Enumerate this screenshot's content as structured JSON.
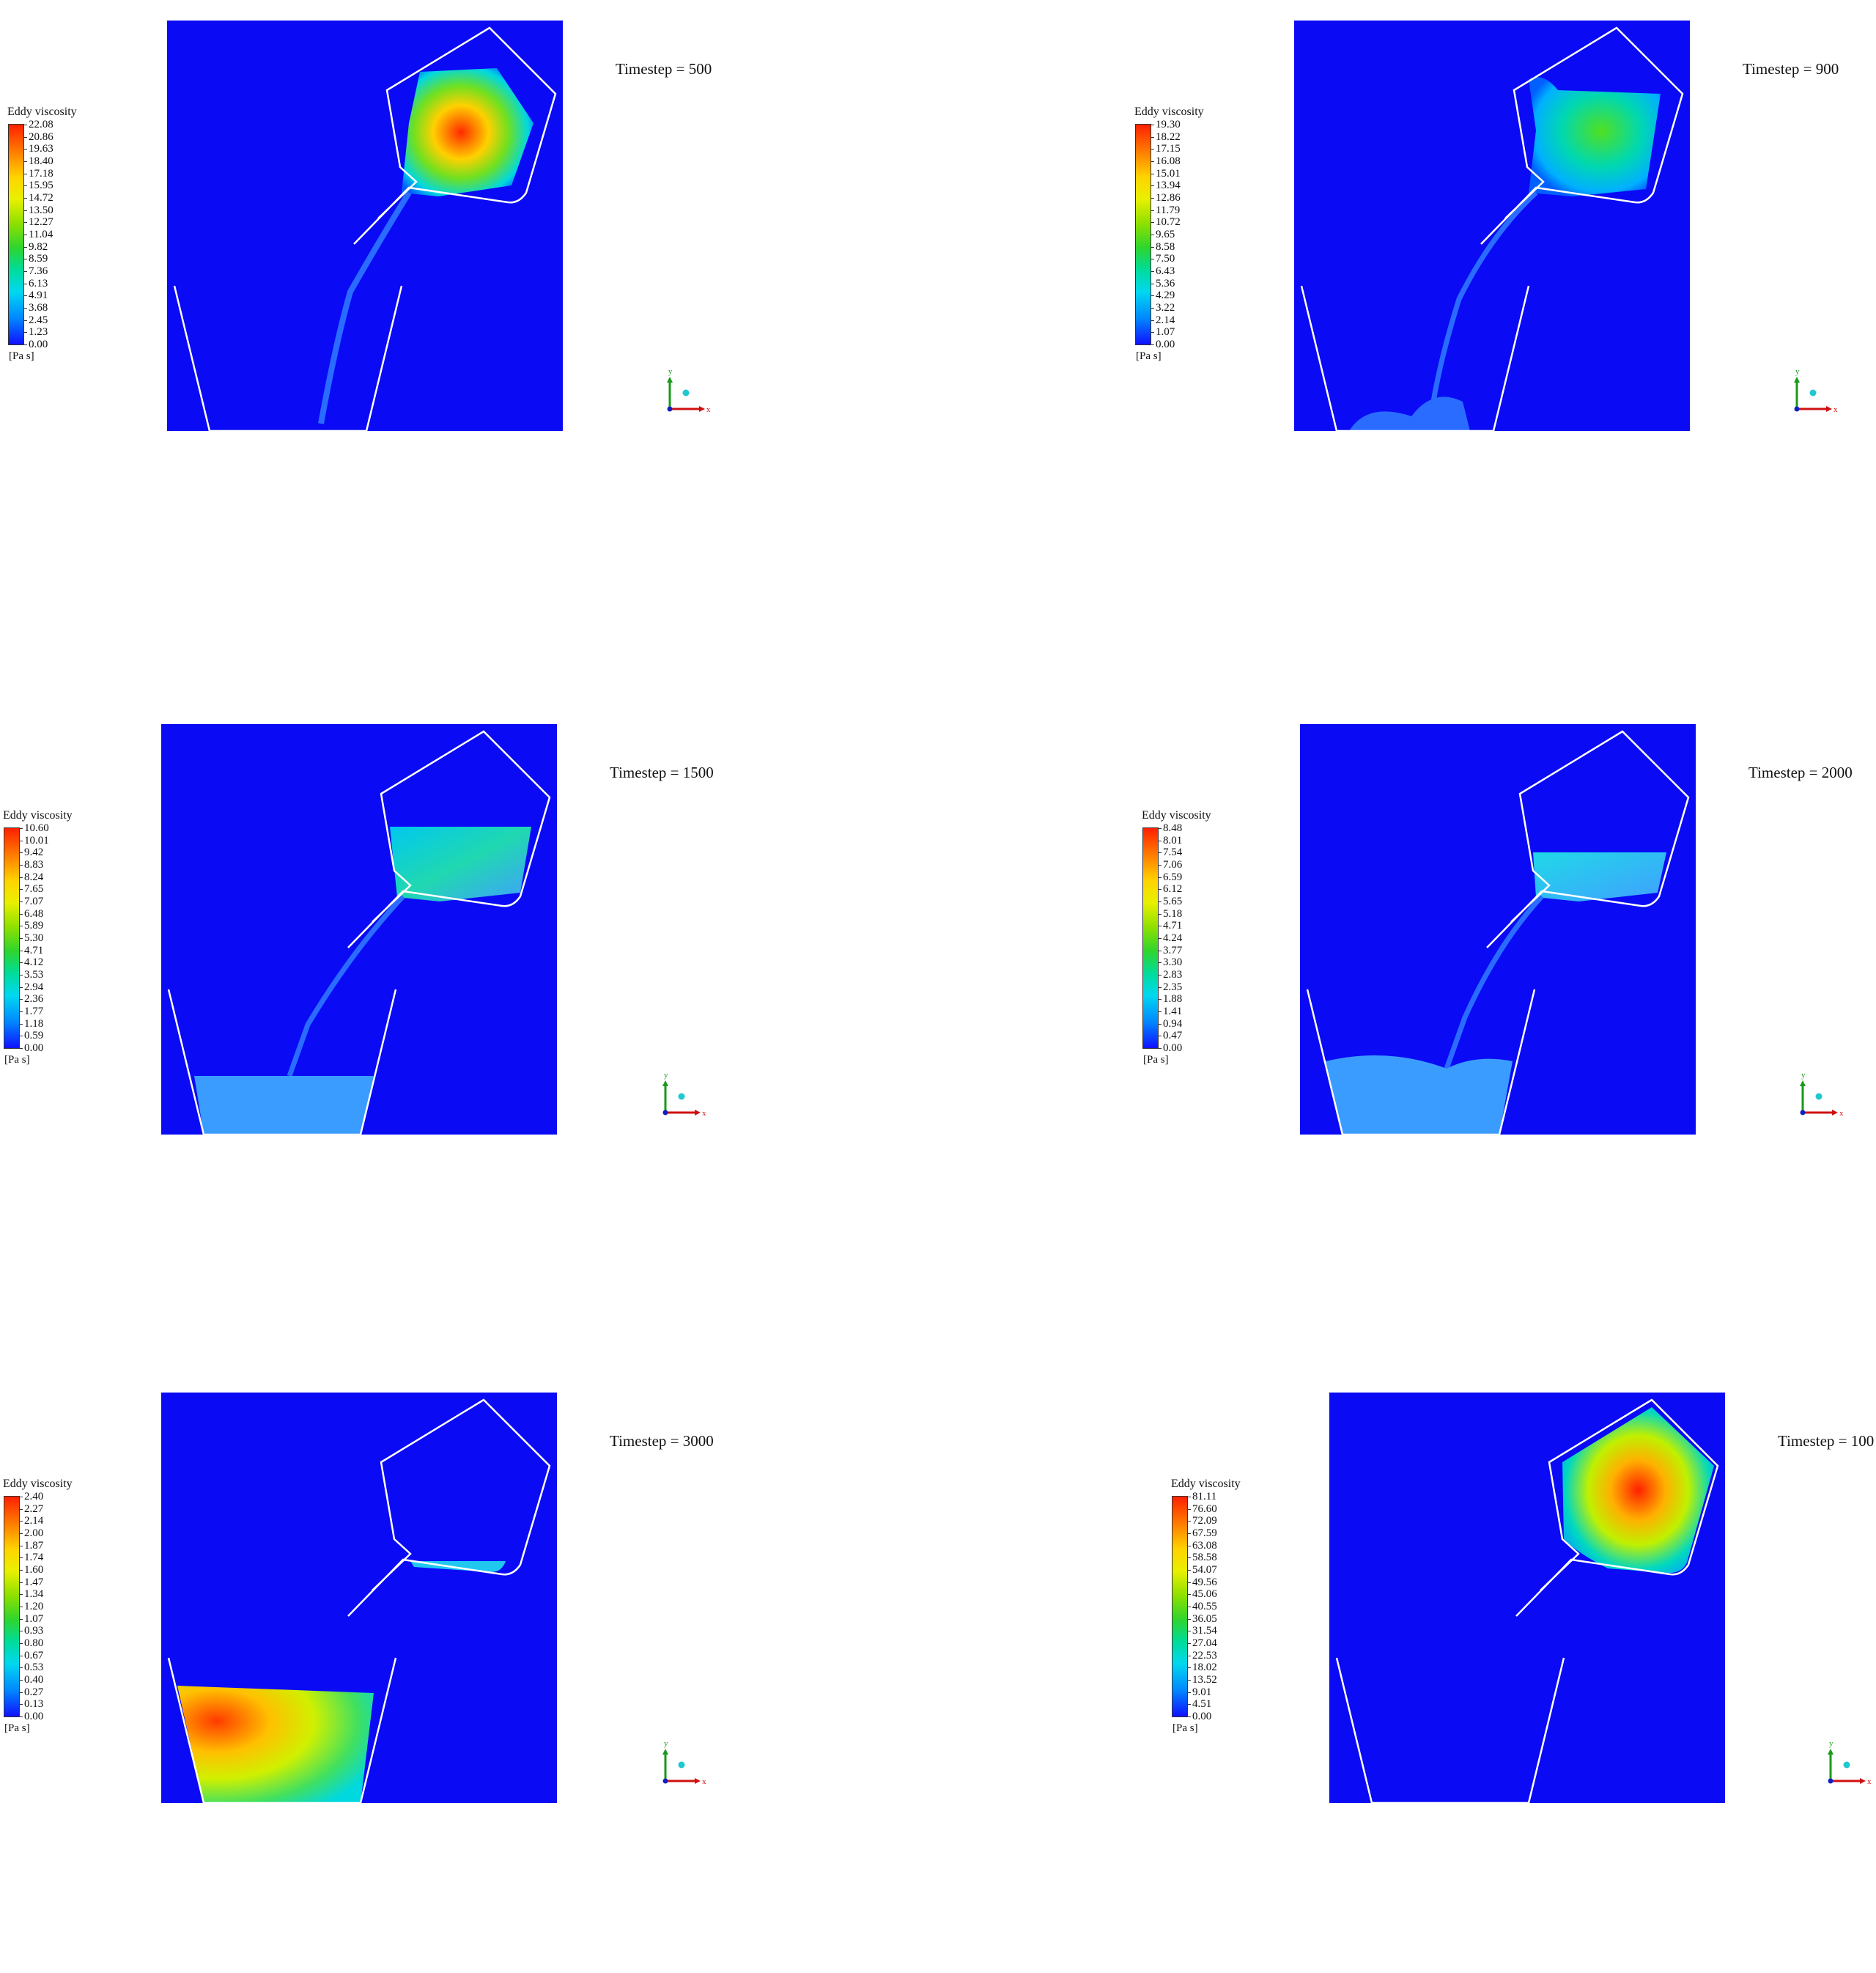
{
  "panels": [
    {
      "timestep_label": "Timestep = 500",
      "legend_title": "Eddy viscosity",
      "unit": "[Pa s]",
      "ticks": [
        "22.08",
        "20.86",
        "19.63",
        "18.40",
        "17.18",
        "15.95",
        "14.72",
        "13.50",
        "12.27",
        "11.04",
        "9.82",
        "8.59",
        "7.36",
        "6.13",
        "4.91",
        "3.68",
        "2.45",
        "1.23",
        "0.00"
      ],
      "hot": "#ff2a00"
    },
    {
      "timestep_label": "Timestep = 900",
      "legend_title": "Eddy viscosity",
      "unit": "[Pa s]",
      "ticks": [
        "19.30",
        "18.22",
        "17.15",
        "16.08",
        "15.01",
        "13.94",
        "12.86",
        "11.79",
        "10.72",
        "9.65",
        "8.58",
        "7.50",
        "6.43",
        "5.36",
        "4.29",
        "3.22",
        "2.14",
        "1.07",
        "0.00"
      ],
      "hot": "#30e020"
    },
    {
      "timestep_label": "Timestep = 1500",
      "legend_title": "Eddy viscosity",
      "unit": "[Pa s]",
      "ticks": [
        "10.60",
        "10.01",
        "9.42",
        "8.83",
        "8.24",
        "7.65",
        "7.07",
        "6.48",
        "5.89",
        "5.30",
        "4.71",
        "4.12",
        "3.53",
        "2.94",
        "2.36",
        "1.77",
        "1.18",
        "0.59",
        "0.00"
      ],
      "hot": "#20d8b0"
    },
    {
      "timestep_label": "Timestep = 2000",
      "legend_title": "Eddy viscosity",
      "unit": "[Pa s]",
      "ticks": [
        "8.48",
        "8.01",
        "7.54",
        "7.06",
        "6.59",
        "6.12",
        "5.65",
        "5.18",
        "4.71",
        "4.24",
        "3.77",
        "3.30",
        "2.83",
        "2.35",
        "1.88",
        "1.41",
        "0.94",
        "0.47",
        "0.00"
      ],
      "hot": "#20d8e8"
    },
    {
      "timestep_label": "Timestep = 3000",
      "legend_title": "Eddy viscosity",
      "unit": "[Pa s]",
      "ticks": [
        "2.40",
        "2.27",
        "2.14",
        "2.00",
        "1.87",
        "1.74",
        "1.60",
        "1.47",
        "1.34",
        "1.20",
        "1.07",
        "0.93",
        "0.80",
        "0.67",
        "0.53",
        "0.40",
        "0.27",
        "0.13",
        "0.00"
      ],
      "hot": "#ff3a00"
    },
    {
      "timestep_label": "Timestep = 100",
      "legend_title": "Eddy viscosity",
      "unit": "[Pa s]",
      "ticks": [
        "81.11",
        "76.60",
        "72.09",
        "67.59",
        "63.08",
        "58.58",
        "54.07",
        "49.56",
        "45.06",
        "40.55",
        "36.05",
        "31.54",
        "27.04",
        "22.53",
        "18.02",
        "13.52",
        "9.01",
        "4.51",
        "0.00"
      ],
      "hot": "#ff2000"
    }
  ],
  "axis_labels": {
    "x": "x",
    "y": "y"
  },
  "colors": {
    "field_background": "#0a0af5",
    "outline": "#ffffff"
  }
}
